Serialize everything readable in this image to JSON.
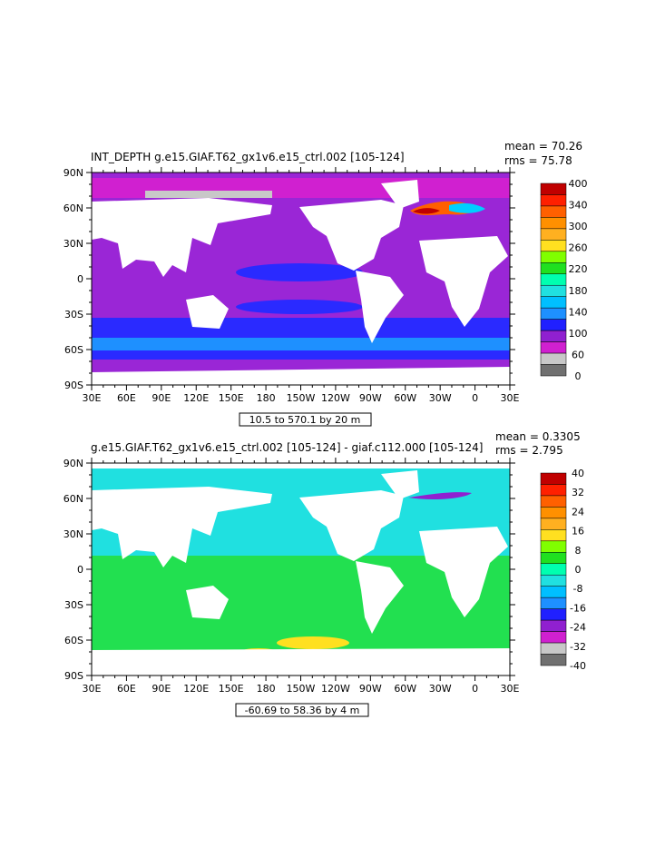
{
  "chart_data": [
    {
      "type": "heatmap",
      "title": "INT_DEPTH g.e15.GIAF.T62_gx1v6.e15_ctrl.002 [105-124]",
      "stats": {
        "mean": "mean = 70.26",
        "rms": "rms = 75.78"
      },
      "range_label": "10.5 to 570.1 by 20 m",
      "x_ticks": [
        "30E",
        "60E",
        "90E",
        "120E",
        "150E",
        "180",
        "150W",
        "120W",
        "90W",
        "60W",
        "30W",
        "0",
        "30E"
      ],
      "y_ticks": [
        "90N",
        "60N",
        "30N",
        "0",
        "30S",
        "60S",
        "90S"
      ],
      "colorbar": {
        "labels": [
          "0",
          "60",
          "100",
          "140",
          "180",
          "220",
          "260",
          "300",
          "340",
          "400"
        ],
        "colors": [
          "#707070",
          "#c8c8c8",
          "#d020d0",
          "#9020d0",
          "#2020ff",
          "#1e90ff",
          "#00bfff",
          "#20e0e0",
          "#00ffb0",
          "#20e020",
          "#80ff00",
          "#ffe020",
          "#ffb020",
          "#ff9000",
          "#ff6000",
          "#ff2000",
          "#c00000"
        ]
      }
    },
    {
      "type": "heatmap",
      "title": "g.e15.GIAF.T62_gx1v6.e15_ctrl.002 [105-124] - giaf.c112.000 [105-124]",
      "stats": {
        "mean": "mean = 0.3305",
        "rms": "rms = 2.795"
      },
      "range_label": "-60.69 to 58.36 by 4 m",
      "x_ticks": [
        "30E",
        "60E",
        "90E",
        "120E",
        "150E",
        "180",
        "150W",
        "120W",
        "90W",
        "60W",
        "30W",
        "0",
        "30E"
      ],
      "y_ticks": [
        "90N",
        "60N",
        "30N",
        "0",
        "30S",
        "60S",
        "90S"
      ],
      "colorbar": {
        "labels": [
          "-40",
          "-32",
          "-24",
          "-16",
          "-8",
          "0",
          "8",
          "16",
          "24",
          "32",
          "40"
        ],
        "colors": [
          "#707070",
          "#c8c8c8",
          "#d020d0",
          "#9020d0",
          "#2020ff",
          "#1e90ff",
          "#00bfff",
          "#20e0e0",
          "#00ffb0",
          "#20e020",
          "#80ff00",
          "#ffe020",
          "#ffb020",
          "#ff9000",
          "#ff6000",
          "#ff2000",
          "#c00000"
        ]
      }
    }
  ]
}
